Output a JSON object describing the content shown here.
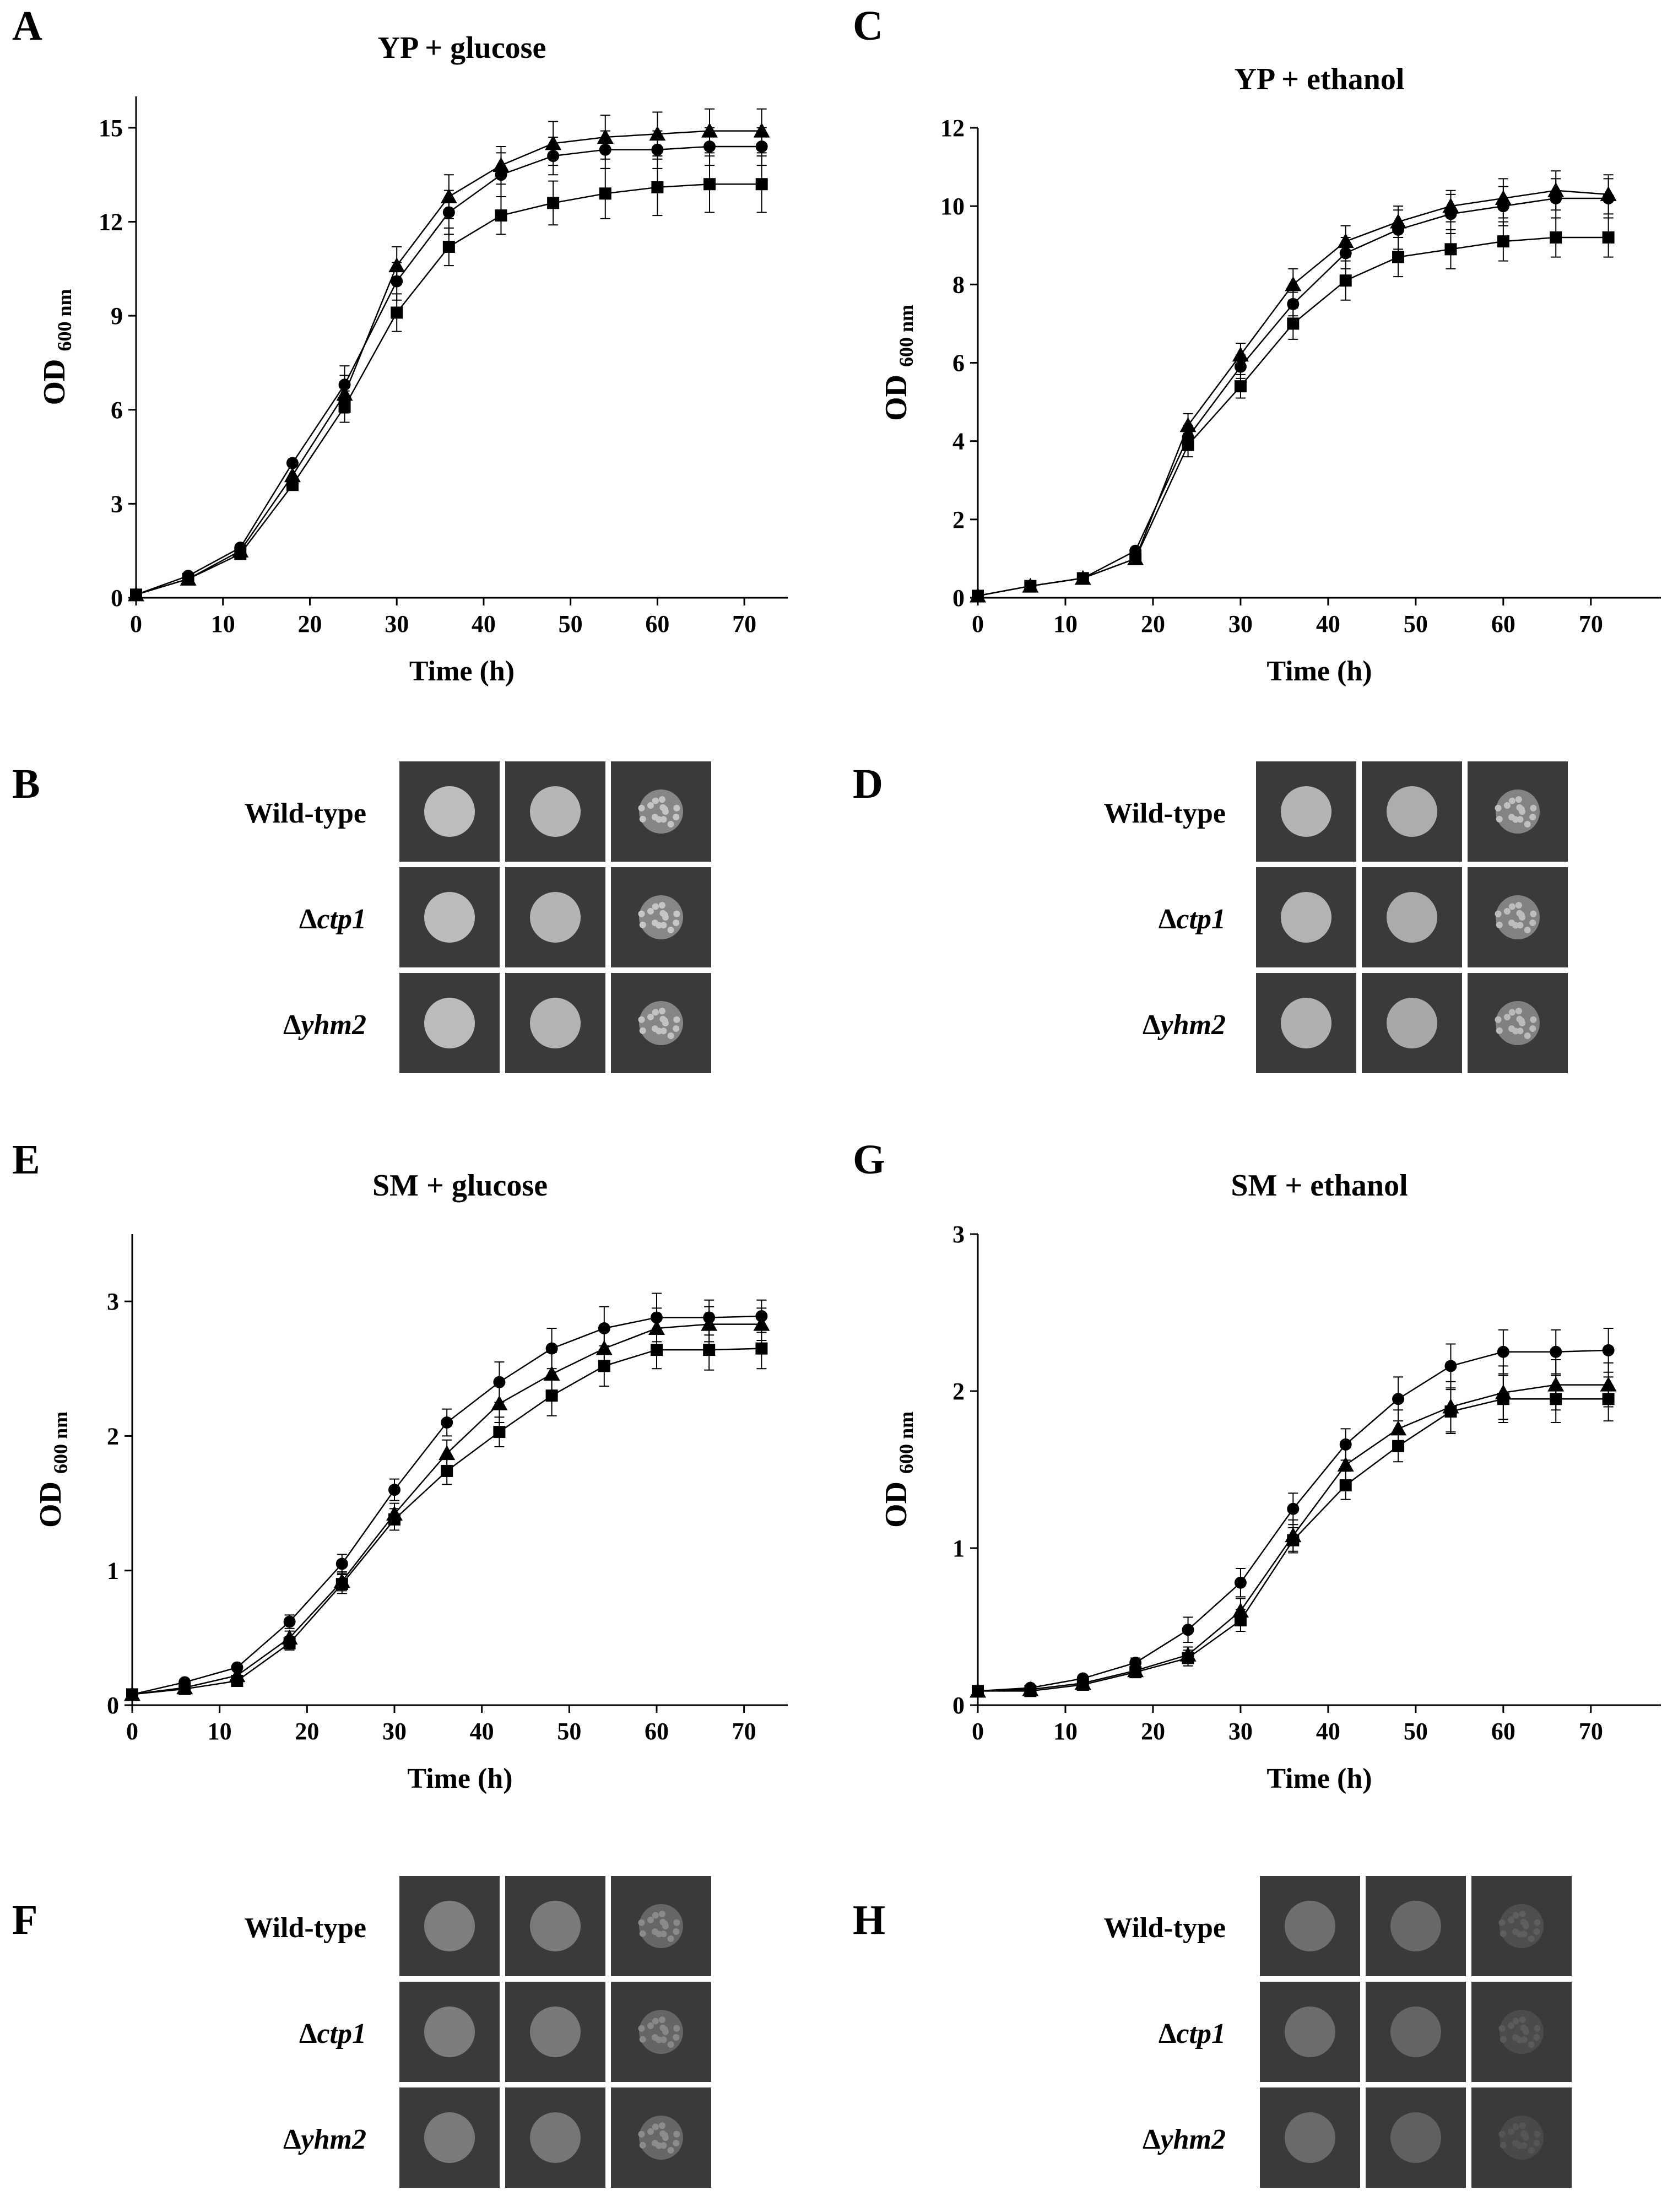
{
  "figure": {
    "panel_letters": [
      "A",
      "B",
      "C",
      "D",
      "E",
      "F",
      "G",
      "H"
    ]
  },
  "marker_series": [
    {
      "name": "circle",
      "marker": "circle"
    },
    {
      "name": "triangle",
      "marker": "triangle"
    },
    {
      "name": "square",
      "marker": "square"
    }
  ],
  "chart_data": [
    {
      "panel": "A",
      "type": "line",
      "title": "YP + glucose",
      "xlabel": "Time (h)",
      "ylabel_main": "OD",
      "ylabel_sub": "600 nm",
      "xlim": [
        0,
        75
      ],
      "ylim": [
        0,
        16
      ],
      "xticks": [
        0,
        10,
        20,
        30,
        40,
        50,
        60,
        70
      ],
      "yticks": [
        0,
        3,
        6,
        9,
        12,
        15
      ],
      "x": [
        0,
        6,
        12,
        18,
        24,
        30,
        36,
        42,
        48,
        54,
        60,
        66,
        72
      ],
      "series": [
        {
          "name": "circle",
          "values": [
            0.1,
            0.7,
            1.6,
            4.3,
            6.8,
            10.1,
            12.3,
            13.5,
            14.1,
            14.3,
            14.3,
            14.4,
            14.4
          ],
          "errors": [
            0,
            0,
            0,
            0,
            0.6,
            0.6,
            0.7,
            0.7,
            0.6,
            0.6,
            0.6,
            0.6,
            0.6
          ]
        },
        {
          "name": "triangle",
          "values": [
            0.1,
            0.6,
            1.5,
            3.9,
            6.5,
            10.6,
            12.8,
            13.8,
            14.5,
            14.7,
            14.8,
            14.9,
            14.9
          ],
          "errors": [
            0,
            0,
            0,
            0,
            0.6,
            0.6,
            0.7,
            0.6,
            0.7,
            0.7,
            0.7,
            0.7,
            0.7
          ]
        },
        {
          "name": "square",
          "values": [
            0.1,
            0.6,
            1.4,
            3.6,
            6.1,
            9.1,
            11.2,
            12.2,
            12.6,
            12.9,
            13.1,
            13.2,
            13.2
          ],
          "errors": [
            0,
            0,
            0,
            0,
            0.5,
            0.6,
            0.6,
            0.6,
            0.7,
            0.8,
            0.9,
            0.9,
            0.9
          ]
        }
      ]
    },
    {
      "panel": "C",
      "type": "line",
      "title": "YP + ethanol",
      "xlabel": "Time (h)",
      "ylabel_main": "OD",
      "ylabel_sub": "600 nm",
      "xlim": [
        0,
        78
      ],
      "ylim": [
        0,
        12
      ],
      "xticks": [
        0,
        10,
        20,
        30,
        40,
        50,
        60,
        70
      ],
      "yticks": [
        0,
        2,
        4,
        6,
        8,
        10,
        12
      ],
      "x": [
        0,
        6,
        12,
        18,
        24,
        30,
        36,
        42,
        48,
        54,
        60,
        66,
        72
      ],
      "series": [
        {
          "name": "circle",
          "values": [
            0.05,
            0.3,
            0.5,
            1.2,
            4.1,
            5.9,
            7.5,
            8.8,
            9.4,
            9.8,
            10.0,
            10.2,
            10.2
          ],
          "errors": [
            0,
            0,
            0,
            0,
            0.3,
            0.3,
            0.3,
            0.4,
            0.5,
            0.5,
            0.5,
            0.5,
            0.5
          ]
        },
        {
          "name": "triangle",
          "values": [
            0.05,
            0.3,
            0.5,
            1.0,
            4.4,
            6.2,
            8.0,
            9.1,
            9.6,
            10.0,
            10.2,
            10.4,
            10.3
          ],
          "errors": [
            0,
            0,
            0,
            0,
            0.3,
            0.3,
            0.4,
            0.4,
            0.4,
            0.4,
            0.5,
            0.5,
            0.5
          ]
        },
        {
          "name": "square",
          "values": [
            0.05,
            0.3,
            0.5,
            1.0,
            3.9,
            5.4,
            7.0,
            8.1,
            8.7,
            8.9,
            9.1,
            9.2,
            9.2
          ],
          "errors": [
            0,
            0,
            0,
            0,
            0.3,
            0.3,
            0.4,
            0.5,
            0.5,
            0.5,
            0.5,
            0.5,
            0.5
          ]
        }
      ]
    },
    {
      "panel": "E",
      "type": "line",
      "title": "SM + glucose",
      "xlabel": "Time (h)",
      "ylabel_main": "OD",
      "ylabel_sub": "600 nm",
      "xlim": [
        0,
        75
      ],
      "ylim": [
        0,
        3.5
      ],
      "xticks": [
        0,
        10,
        20,
        30,
        40,
        50,
        60,
        70
      ],
      "yticks": [
        0,
        1,
        2,
        3
      ],
      "x": [
        0,
        6,
        12,
        18,
        24,
        30,
        36,
        42,
        48,
        54,
        60,
        66,
        72
      ],
      "series": [
        {
          "name": "circle",
          "values": [
            0.08,
            0.17,
            0.28,
            0.62,
            1.05,
            1.6,
            2.1,
            2.4,
            2.65,
            2.8,
            2.88,
            2.88,
            2.89
          ],
          "errors": [
            0,
            0,
            0,
            0.05,
            0.07,
            0.08,
            0.1,
            0.15,
            0.15,
            0.16,
            0.18,
            0.13,
            0.12
          ]
        },
        {
          "name": "triangle",
          "values": [
            0.08,
            0.13,
            0.22,
            0.5,
            0.92,
            1.42,
            1.87,
            2.24,
            2.46,
            2.65,
            2.8,
            2.83,
            2.83
          ],
          "errors": [
            0,
            0,
            0,
            0.05,
            0.07,
            0.08,
            0.1,
            0.14,
            0.16,
            0.17,
            0.15,
            0.13,
            0.12
          ]
        },
        {
          "name": "square",
          "values": [
            0.08,
            0.12,
            0.18,
            0.46,
            0.9,
            1.38,
            1.74,
            2.03,
            2.3,
            2.52,
            2.64,
            2.64,
            2.65
          ],
          "errors": [
            0,
            0,
            0,
            0.05,
            0.07,
            0.08,
            0.1,
            0.11,
            0.15,
            0.15,
            0.14,
            0.15,
            0.15
          ]
        }
      ]
    },
    {
      "panel": "G",
      "type": "line",
      "title": "SM + ethanol",
      "xlabel": "Time (h)",
      "ylabel_main": "OD",
      "ylabel_sub": "600 nm",
      "xlim": [
        0,
        78
      ],
      "ylim": [
        0,
        3
      ],
      "xticks": [
        0,
        10,
        20,
        30,
        40,
        50,
        60,
        70
      ],
      "yticks": [
        0,
        1,
        2,
        3
      ],
      "x": [
        0,
        6,
        12,
        18,
        24,
        30,
        36,
        42,
        48,
        54,
        60,
        66,
        72
      ],
      "series": [
        {
          "name": "circle",
          "values": [
            0.09,
            0.11,
            0.17,
            0.27,
            0.48,
            0.78,
            1.25,
            1.66,
            1.95,
            2.16,
            2.25,
            2.25,
            2.26
          ],
          "errors": [
            0,
            0,
            0,
            0.03,
            0.08,
            0.09,
            0.1,
            0.1,
            0.14,
            0.14,
            0.14,
            0.14,
            0.14
          ]
        },
        {
          "name": "triangle",
          "values": [
            0.09,
            0.1,
            0.14,
            0.22,
            0.32,
            0.6,
            1.08,
            1.53,
            1.76,
            1.9,
            1.99,
            2.04,
            2.04
          ],
          "errors": [
            0,
            0,
            0,
            0.03,
            0.05,
            0.08,
            0.1,
            0.12,
            0.12,
            0.16,
            0.17,
            0.16,
            0.14
          ]
        },
        {
          "name": "square",
          "values": [
            0.09,
            0.09,
            0.13,
            0.21,
            0.3,
            0.54,
            1.05,
            1.4,
            1.65,
            1.87,
            1.95,
            1.95,
            1.95
          ],
          "errors": [
            0,
            0,
            0,
            0.03,
            0.05,
            0.07,
            0.08,
            0.09,
            0.1,
            0.14,
            0.15,
            0.15,
            0.14
          ]
        }
      ]
    }
  ],
  "spot_panels": [
    {
      "panel": "B",
      "rows": [
        {
          "prefix": "",
          "name": "Wild-type",
          "italic": false,
          "spots": [
            {
              "fill": "#bdbdbd",
              "colony": "solid"
            },
            {
              "fill": "#b6b6b6",
              "colony": "solid"
            },
            {
              "fill": "#c4c4c4",
              "colony": "speckled"
            }
          ]
        },
        {
          "prefix": "Δ",
          "name": "ctp1",
          "italic": true,
          "spots": [
            {
              "fill": "#bcbcbc",
              "colony": "solid"
            },
            {
              "fill": "#b4b4b4",
              "colony": "solid"
            },
            {
              "fill": "#c6c6c6",
              "colony": "speckled"
            }
          ]
        },
        {
          "prefix": "Δ",
          "name": "yhm2",
          "italic": true,
          "spots": [
            {
              "fill": "#bbbbbb",
              "colony": "solid"
            },
            {
              "fill": "#b3b3b3",
              "colony": "solid"
            },
            {
              "fill": "#c2c2c2",
              "colony": "speckled"
            }
          ]
        }
      ]
    },
    {
      "panel": "D",
      "rows": [
        {
          "prefix": "",
          "name": "Wild-type",
          "italic": false,
          "spots": [
            {
              "fill": "#b4b4b4",
              "colony": "solid"
            },
            {
              "fill": "#adadad",
              "colony": "solid"
            },
            {
              "fill": "#c0c0c0",
              "colony": "speckled"
            }
          ]
        },
        {
          "prefix": "Δ",
          "name": "ctp1",
          "italic": true,
          "spots": [
            {
              "fill": "#b3b3b3",
              "colony": "solid"
            },
            {
              "fill": "#ababab",
              "colony": "solid"
            },
            {
              "fill": "#bdbdbd",
              "colony": "speckled"
            }
          ]
        },
        {
          "prefix": "Δ",
          "name": "yhm2",
          "italic": true,
          "spots": [
            {
              "fill": "#b0b0b0",
              "colony": "solid"
            },
            {
              "fill": "#a8a8a8",
              "colony": "solid"
            },
            {
              "fill": "#bababa",
              "colony": "speckled"
            }
          ]
        }
      ]
    },
    {
      "panel": "F",
      "rows": [
        {
          "prefix": "",
          "name": "Wild-type",
          "italic": false,
          "spots": [
            {
              "fill": "#7e7e7e",
              "colony": "solid"
            },
            {
              "fill": "#7a7a7a",
              "colony": "solid"
            },
            {
              "fill": "#8a8a8a",
              "colony": "speckled"
            }
          ]
        },
        {
          "prefix": "Δ",
          "name": "ctp1",
          "italic": true,
          "spots": [
            {
              "fill": "#7c7c7c",
              "colony": "solid"
            },
            {
              "fill": "#787878",
              "colony": "solid"
            },
            {
              "fill": "#888888",
              "colony": "speckled"
            }
          ]
        },
        {
          "prefix": "Δ",
          "name": "yhm2",
          "italic": true,
          "spots": [
            {
              "fill": "#7a7a7a",
              "colony": "solid"
            },
            {
              "fill": "#767676",
              "colony": "solid"
            },
            {
              "fill": "#8c8c8c",
              "colony": "speckled"
            }
          ]
        }
      ]
    },
    {
      "panel": "H",
      "rows": [
        {
          "prefix": "",
          "name": "Wild-type",
          "italic": false,
          "spots": [
            {
              "fill": "#6e6e6e",
              "colony": "solid"
            },
            {
              "fill": "#686868",
              "colony": "solid"
            },
            {
              "fill": "#5e5e5e",
              "colony": "speckled"
            }
          ]
        },
        {
          "prefix": "Δ",
          "name": "ctp1",
          "italic": true,
          "spots": [
            {
              "fill": "#6c6c6c",
              "colony": "solid"
            },
            {
              "fill": "#646464",
              "colony": "solid"
            },
            {
              "fill": "#5a5a5a",
              "colony": "speckled"
            }
          ]
        },
        {
          "prefix": "Δ",
          "name": "yhm2",
          "italic": true,
          "spots": [
            {
              "fill": "#6a6a6a",
              "colony": "solid"
            },
            {
              "fill": "#606060",
              "colony": "solid"
            },
            {
              "fill": "#555555",
              "colony": "speckled"
            }
          ]
        }
      ]
    }
  ]
}
